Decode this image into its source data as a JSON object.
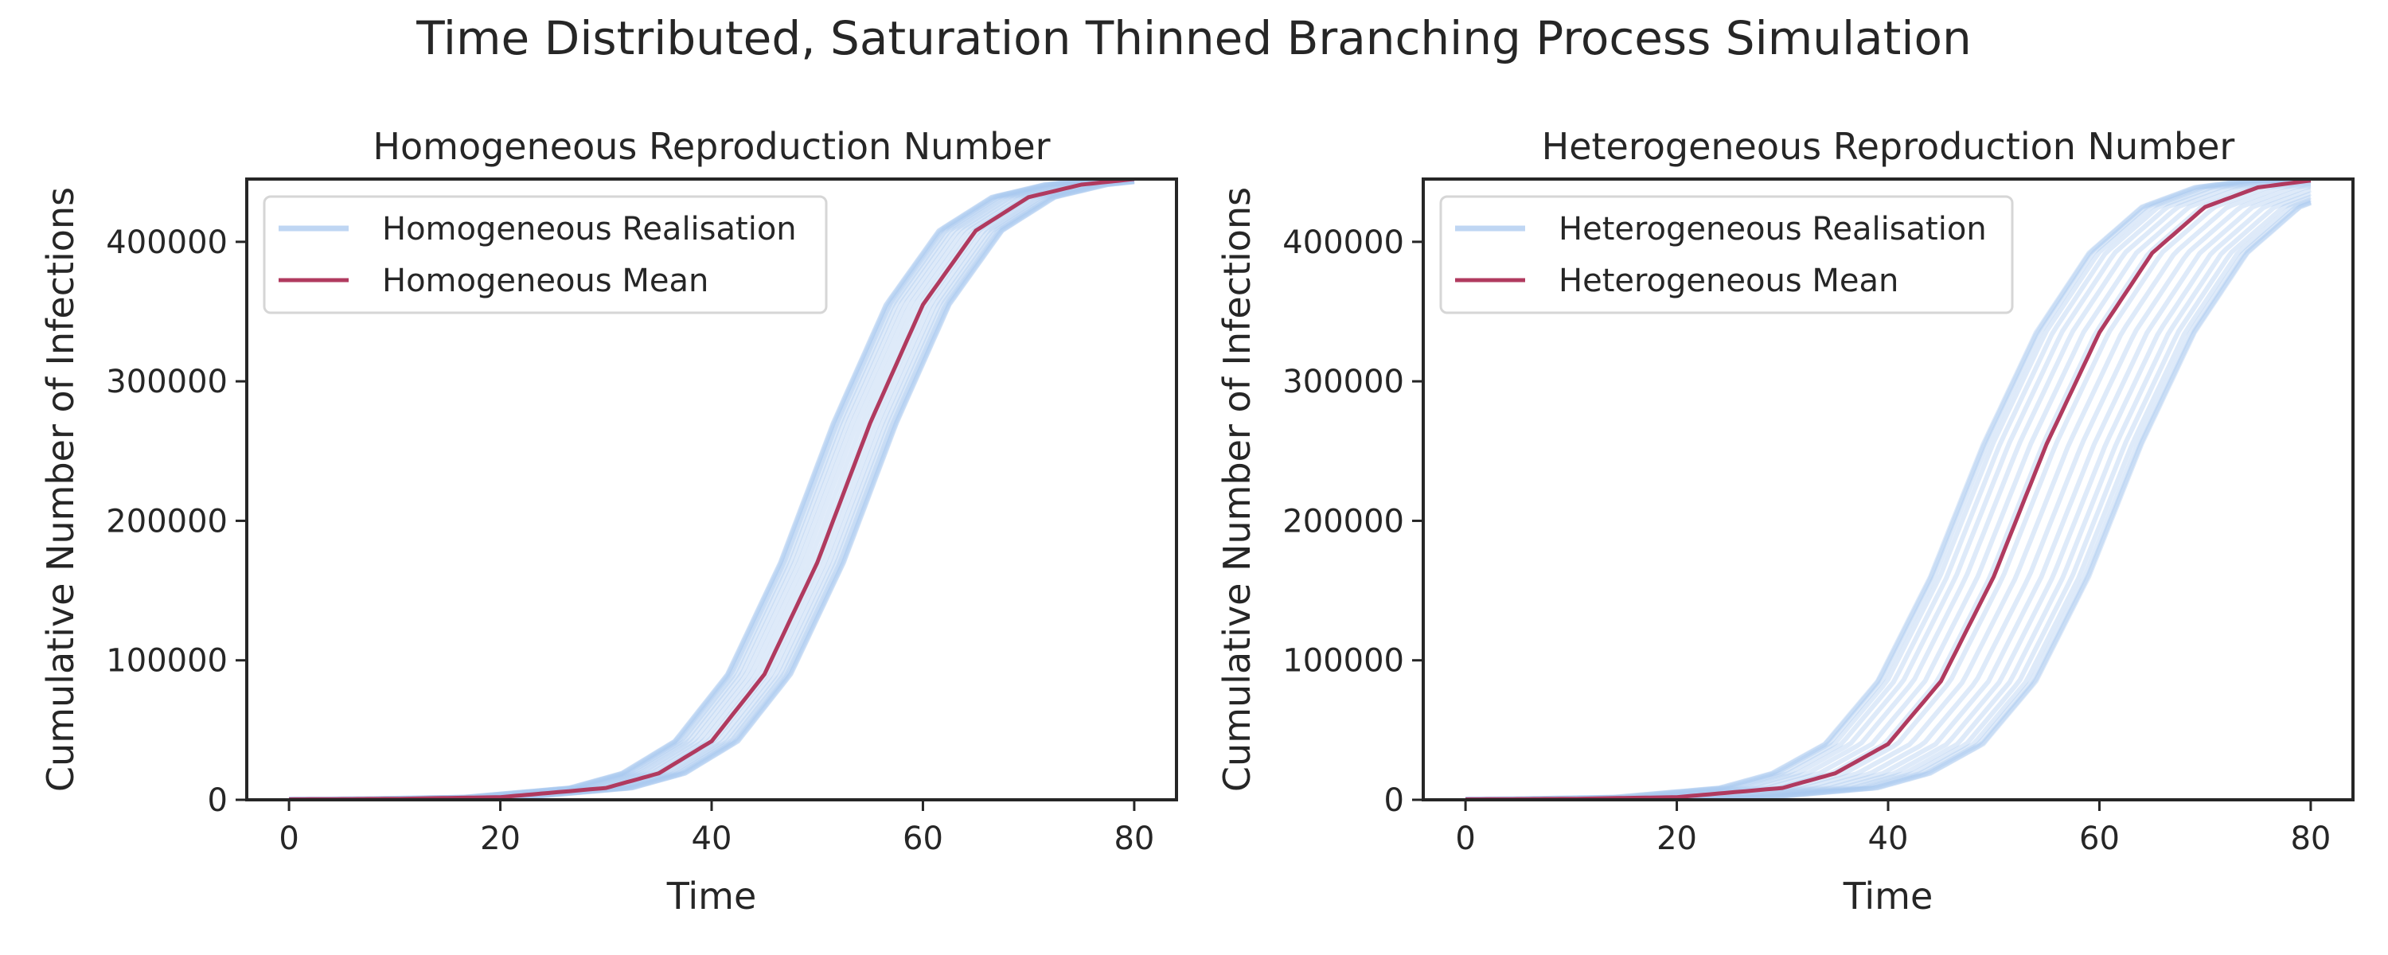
{
  "figure": {
    "suptitle": "Time Distributed, Saturation Thinned Branching Process Simulation"
  },
  "colors": {
    "realisation": "#a9c8ef",
    "mean": "#b03a5f",
    "axis": "#262626"
  },
  "chart_data": [
    {
      "type": "line",
      "title": "Homogeneous Reproduction Number",
      "xlabel": "Time",
      "ylabel": "Cumulative Number of Infections",
      "xlim": [
        -4,
        84
      ],
      "ylim": [
        0,
        445000
      ],
      "xticks": [
        0,
        20,
        40,
        60,
        80
      ],
      "yticks": [
        0,
        100000,
        200000,
        300000,
        400000
      ],
      "grid": false,
      "legend": {
        "location": "upper-left",
        "entries": [
          "Homogeneous Realisation",
          "Homogeneous Mean"
        ]
      },
      "x": [
        0,
        10,
        20,
        30,
        35,
        40,
        45,
        50,
        55,
        60,
        65,
        70,
        75,
        80
      ],
      "series": [
        {
          "name": "Homogeneous Mean",
          "role": "mean",
          "values": [
            300,
            700,
            1900,
            8500,
            19000,
            42000,
            90000,
            170000,
            270000,
            355000,
            408000,
            432000,
            441000,
            445000
          ]
        }
      ],
      "realisations": {
        "name": "Homogeneous Realisation",
        "count": 20,
        "shift_range": [
          -3.5,
          2.5
        ]
      }
    },
    {
      "type": "line",
      "title": "Heterogeneous Reproduction Number",
      "xlabel": "Time",
      "ylabel": "Cumulative Number of Infections",
      "xlim": [
        -4,
        84
      ],
      "ylim": [
        0,
        445000
      ],
      "xticks": [
        0,
        20,
        40,
        60,
        80
      ],
      "yticks": [
        0,
        100000,
        200000,
        300000,
        400000
      ],
      "grid": false,
      "legend": {
        "location": "upper-left",
        "entries": [
          "Heterogeneous Realisation",
          "Heterogeneous Mean"
        ]
      },
      "x": [
        0,
        10,
        20,
        30,
        35,
        40,
        45,
        50,
        55,
        60,
        65,
        70,
        75,
        80
      ],
      "series": [
        {
          "name": "Heterogeneous Mean",
          "role": "mean",
          "values": [
            300,
            700,
            1900,
            8500,
            19000,
            40000,
            85000,
            160000,
            255000,
            335000,
            392000,
            425000,
            439000,
            444000
          ]
        }
      ],
      "realisations": {
        "name": "Heterogeneous Realisation",
        "count": 20,
        "shift_range": [
          -6,
          9
        ]
      }
    }
  ]
}
